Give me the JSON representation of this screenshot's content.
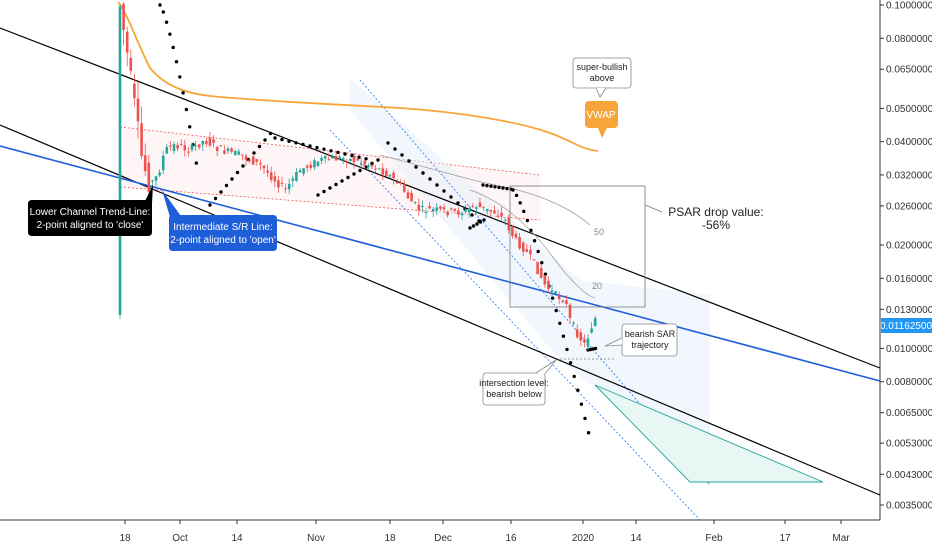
{
  "chart_data": {
    "type": "candlestick",
    "y_scale": "log",
    "y_ticks": [
      "0.10000000",
      "0.08000000",
      "0.06500000",
      "0.05000000",
      "0.04000000",
      "0.03200000",
      "0.02600000",
      "0.02000000",
      "0.01600000",
      "0.01300000",
      "0.01000000",
      "0.00800000",
      "0.00650000",
      "0.00530000",
      "0.00430000",
      "0.00350000"
    ],
    "y_tick_values": [
      0.1,
      0.08,
      0.065,
      0.05,
      0.04,
      0.032,
      0.026,
      0.02,
      0.016,
      0.013,
      0.01,
      0.008,
      0.0065,
      0.0053,
      0.0043,
      0.0035
    ],
    "x_ticks": [
      "18",
      "Oct",
      "14",
      "Nov",
      "18",
      "Dec",
      "16",
      "2020",
      "14",
      "Feb",
      "17",
      "Mar"
    ],
    "current_price": "0.01162500",
    "ma_labels": [
      "50",
      "20"
    ],
    "annotations": {
      "lower_channel": [
        "Lower Channel Trend-Line:",
        "2-point aligned to 'close'"
      ],
      "intermediate_sr": [
        "Intermediate S/R Line:",
        "2-point aligned to 'open'"
      ],
      "super_bullish": [
        "super-bullish",
        "above"
      ],
      "vwap": "VWAP",
      "psar_drop": [
        "PSAR drop value:",
        "-56%"
      ],
      "bearish_sar": [
        "bearish SAR",
        "trajectory"
      ],
      "intersection": [
        "intersection level:",
        "bearish below"
      ]
    },
    "colors": {
      "up": "#26a69a",
      "down": "#ef5350",
      "vwap": "#f7a53b",
      "trend": "#000000",
      "sr": "#1e5fd9",
      "price_tag": "#2196f3",
      "channel": "#3b82f6"
    }
  }
}
